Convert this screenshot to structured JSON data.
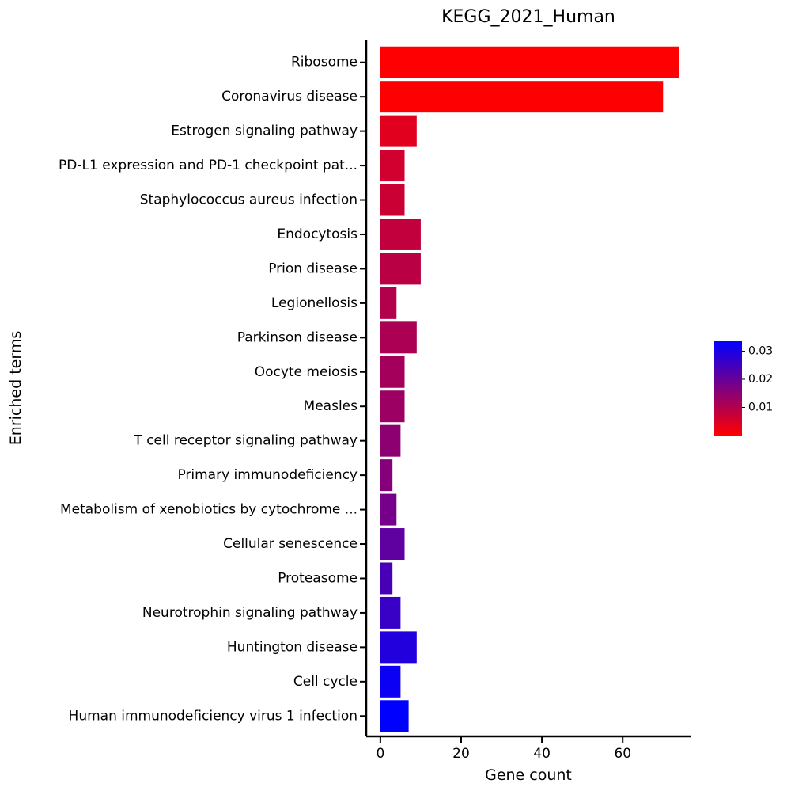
{
  "chart_data": {
    "type": "bar",
    "orientation": "horizontal",
    "title": "KEGG_2021_Human",
    "xlabel": "Gene count",
    "ylabel": "Enriched terms",
    "xlim": [
      -3.5,
      77
    ],
    "xticks": [
      0,
      20,
      40,
      60
    ],
    "grid": false,
    "legend": "right",
    "categories": [
      "Ribosome",
      "Coronavirus disease",
      "Estrogen signaling pathway",
      "PD-L1 expression and PD-1 checkpoint pat...",
      "Staphylococcus aureus infection",
      "Endocytosis",
      "Prion disease",
      "Legionellosis",
      "Parkinson disease",
      "Oocyte meiosis",
      "Measles",
      "T cell receptor signaling pathway",
      "Primary immunodeficiency",
      "Metabolism of xenobiotics by cytochrome ...",
      "Cellular senescence",
      "Proteasome",
      "Neurotrophin signaling pathway",
      "Huntington disease",
      "Cell cycle",
      "Human immunodeficiency virus 1 infection"
    ],
    "values": [
      74,
      70,
      9,
      6,
      6,
      10,
      10,
      4,
      9,
      6,
      6,
      5,
      3,
      4,
      6,
      3,
      5,
      9,
      5,
      7
    ],
    "color_values": [
      0.0001,
      0.0002,
      0.004,
      0.006,
      0.007,
      0.008,
      0.009,
      0.01,
      0.011,
      0.012,
      0.013,
      0.015,
      0.016,
      0.018,
      0.021,
      0.024,
      0.026,
      0.029,
      0.032,
      0.0335
    ],
    "colorbar": {
      "ticks": [
        0.01,
        0.02,
        0.03
      ],
      "tick_labels": [
        "0.01",
        "0.02",
        "0.03"
      ],
      "range": [
        0.0,
        0.0335
      ],
      "color_low": "#ff0000",
      "color_high": "#0000ff"
    }
  }
}
